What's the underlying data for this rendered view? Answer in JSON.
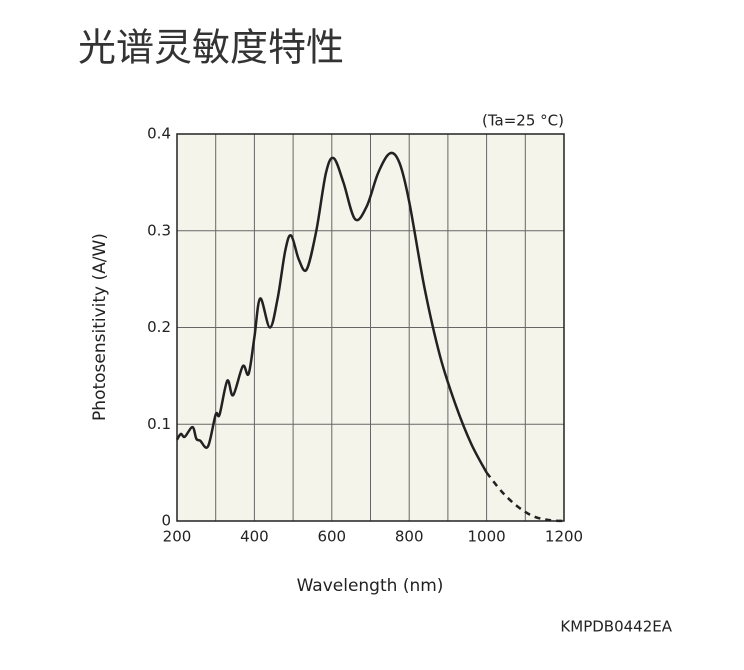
{
  "chart_data": {
    "type": "line",
    "title": "光谱灵敏度特性",
    "annotation": "(Ta=25 °C)",
    "code": "KMPDB0442EA",
    "x_label": "Wavelength (nm)",
    "y_label": "Photosensitivity (A/W)",
    "xlim": [
      200,
      1200
    ],
    "ylim": [
      0,
      0.4
    ],
    "xticks": [
      200,
      400,
      600,
      800,
      1000,
      1200
    ],
    "xminor": [
      300,
      500,
      700,
      900,
      1100
    ],
    "yticks": [
      0,
      0.1,
      0.2,
      0.3,
      0.4
    ],
    "grid": true,
    "series": [
      {
        "color": "#222222",
        "style": "solid",
        "x": [
          200,
          210,
          220,
          240,
          250,
          260,
          280,
          300,
          310,
          330,
          345,
          370,
          385,
          400,
          415,
          440,
          460,
          480,
          495,
          515,
          535,
          560,
          585,
          605,
          630,
          660,
          690,
          720,
          750,
          775,
          800,
          840,
          880,
          920,
          960,
          1000
        ],
        "values": [
          0.084,
          0.09,
          0.087,
          0.097,
          0.085,
          0.083,
          0.077,
          0.11,
          0.11,
          0.145,
          0.13,
          0.16,
          0.152,
          0.19,
          0.23,
          0.2,
          0.23,
          0.28,
          0.295,
          0.27,
          0.26,
          0.3,
          0.36,
          0.375,
          0.35,
          0.312,
          0.325,
          0.36,
          0.38,
          0.37,
          0.33,
          0.24,
          0.17,
          0.12,
          0.08,
          0.05
        ]
      },
      {
        "color": "#222222",
        "style": "dashed",
        "x": [
          1000,
          1040,
          1080,
          1120,
          1160,
          1200
        ],
        "values": [
          0.05,
          0.03,
          0.015,
          0.005,
          0.001,
          0
        ]
      }
    ]
  }
}
